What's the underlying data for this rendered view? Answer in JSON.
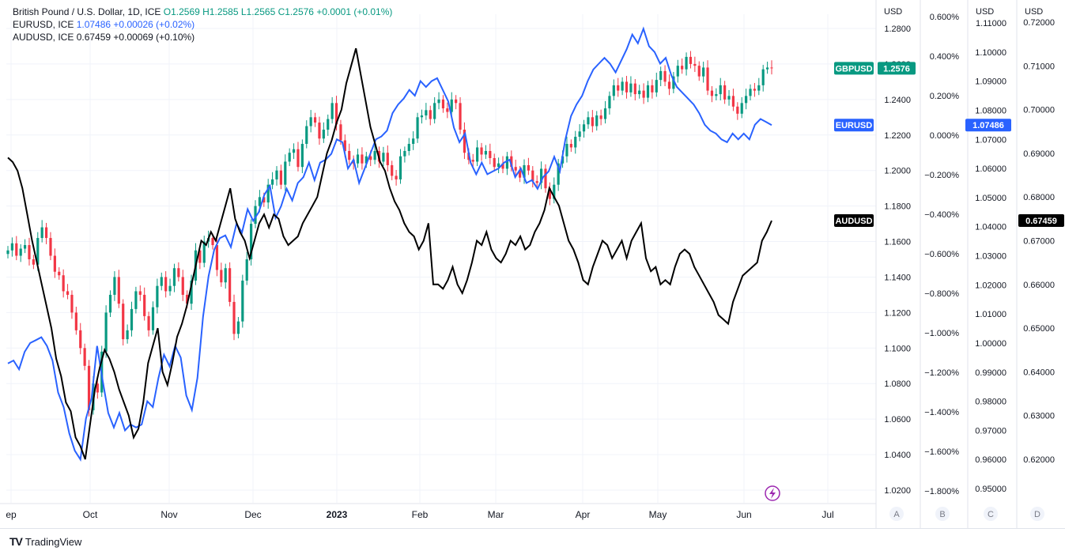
{
  "legend": {
    "main": {
      "name": "British Pound / U.S. Dollar, 1D, ICE",
      "O": "O1.2569",
      "H": "H1.2585",
      "L": "L1.2565",
      "C": "C1.2576",
      "chg": "+0.0001 (+0.01%)"
    },
    "eur": {
      "name": "EURUSD, ICE",
      "value": "1.07486",
      "chg": "+0.00026 (+0.02%)"
    },
    "aud": {
      "name": "AUDUSD, ICE",
      "value": "0.67459",
      "chg": "+0.00069 (+0.10%)"
    }
  },
  "colors": {
    "up": "#089981",
    "down": "#f23645",
    "eur": "#2962ff",
    "aud": "#000000",
    "grid": "#f0f3fa",
    "border": "#e0e3eb"
  },
  "footer": {
    "brand": "TradingView",
    "brand_icon": "tradingview-logo-icon"
  },
  "chart_data": {
    "type": "line",
    "x_labels": [
      "ep",
      "Oct",
      "Nov",
      "Dec",
      "2023",
      "Feb",
      "Mar",
      "Apr",
      "May",
      "Jun",
      "Jul"
    ],
    "scales": [
      {
        "id": "A",
        "unit": "USD",
        "series": "GBPUSD",
        "min": 1.02,
        "max": 1.28,
        "ticks": [
          "1.2800",
          "1.2600",
          "1.2400",
          "1.2200",
          "1.2000",
          "1.1800",
          "1.1600",
          "1.1400",
          "1.1200",
          "1.1000",
          "1.0800",
          "1.0600",
          "1.0400",
          "1.0200"
        ]
      },
      {
        "id": "B",
        "unit": "",
        "series": "percent",
        "min": -1.8,
        "max": 0.6,
        "ticks": [
          "0.600%",
          "0.400%",
          "0.200%",
          "0.000%",
          "−0.200%",
          "−0.400%",
          "−0.600%",
          "−0.800%",
          "−1.000%",
          "−1.200%",
          "−1.400%",
          "−1.600%",
          "−1.800%"
        ]
      },
      {
        "id": "C",
        "unit": "USD",
        "series": "EURUSD",
        "min": 0.95,
        "max": 1.11,
        "ticks": [
          "1.11000",
          "1.10000",
          "1.09000",
          "1.08000",
          "1.07000",
          "1.06000",
          "1.05000",
          "1.04000",
          "1.03000",
          "1.02000",
          "1.01000",
          "1.00000",
          "0.99000",
          "0.98000",
          "0.97000",
          "0.96000",
          "0.95000"
        ]
      },
      {
        "id": "D",
        "unit": "USD",
        "series": "AUDUSD",
        "min": 0.62,
        "max": 0.72,
        "ticks": [
          "0.72000",
          "0.71000",
          "0.70000",
          "0.69000",
          "0.68000",
          "0.67000",
          "0.66000",
          "0.65000",
          "0.64000",
          "0.63000",
          "0.62000"
        ]
      }
    ],
    "last_labels": [
      {
        "name": "GBPUSD",
        "value": "1.2576"
      },
      {
        "name": "EURUSD",
        "value": "1.07486"
      },
      {
        "name": "AUDUSD",
        "value": "0.67459"
      }
    ],
    "scale_buttons": [
      "A",
      "B",
      "C",
      "D"
    ],
    "gbpusd_close": [
      1.155,
      1.159,
      1.152,
      1.156,
      1.158,
      1.15,
      1.147,
      1.162,
      1.168,
      1.162,
      1.152,
      1.143,
      1.141,
      1.132,
      1.13,
      1.12,
      1.11,
      1.1,
      1.09,
      1.065,
      1.08,
      1.075,
      1.098,
      1.12,
      1.13,
      1.14,
      1.125,
      1.105,
      1.11,
      1.122,
      1.132,
      1.13,
      1.118,
      1.11,
      1.123,
      1.135,
      1.14,
      1.132,
      1.135,
      1.145,
      1.14,
      1.13,
      1.125,
      1.138,
      1.155,
      1.148,
      1.16,
      1.162,
      1.158,
      1.144,
      1.137,
      1.145,
      1.126,
      1.108,
      1.115,
      1.138,
      1.15,
      1.17,
      1.18,
      1.185,
      1.182,
      1.192,
      1.195,
      1.2,
      1.192,
      1.205,
      1.21,
      1.212,
      1.202,
      1.215,
      1.225,
      1.23,
      1.227,
      1.218,
      1.223,
      1.229,
      1.238,
      1.226,
      1.217,
      1.211,
      1.206,
      1.204,
      1.209,
      1.204,
      1.208,
      1.206,
      1.211,
      1.205,
      1.21,
      1.203,
      1.197,
      1.195,
      1.208,
      1.211,
      1.215,
      1.218,
      1.23,
      1.231,
      1.234,
      1.229,
      1.238,
      1.24,
      1.235,
      1.233,
      1.24,
      1.238,
      1.223,
      1.21,
      1.206,
      1.205,
      1.213,
      1.209,
      1.211,
      1.207,
      1.202,
      1.204,
      1.201,
      1.208,
      1.202,
      1.2,
      1.196,
      1.203,
      1.2,
      1.194,
      1.193,
      1.201,
      1.19,
      1.184,
      1.192,
      1.204,
      1.208,
      1.215,
      1.213,
      1.219,
      1.222,
      1.226,
      1.23,
      1.225,
      1.231,
      1.229,
      1.235,
      1.242,
      1.248,
      1.245,
      1.25,
      1.244,
      1.249,
      1.243,
      1.245,
      1.241,
      1.248,
      1.244,
      1.251,
      1.256,
      1.25,
      1.246,
      1.253,
      1.259,
      1.257,
      1.264,
      1.26,
      1.259,
      1.253,
      1.258,
      1.245,
      1.242,
      1.243,
      1.248,
      1.24,
      1.242,
      1.236,
      1.232,
      1.238,
      1.242,
      1.246,
      1.245,
      1.248,
      1.257,
      1.258,
      1.2576
    ],
    "eurusd_close": [
      0.993,
      0.994,
      0.991,
      0.997,
      1.0,
      1.001,
      1.002,
      0.999,
      0.994,
      0.983,
      0.978,
      0.969,
      0.963,
      0.96,
      0.974,
      0.981,
      0.999,
      0.987,
      0.976,
      0.971,
      0.976,
      0.97,
      0.972,
      0.971,
      0.972,
      0.98,
      0.978,
      0.988,
      0.996,
      0.992,
      0.999,
      0.995,
      0.982,
      0.977,
      0.988,
      1.009,
      1.023,
      1.032,
      1.036,
      1.037,
      1.033,
      1.041,
      1.038,
      1.046,
      1.042,
      1.045,
      1.051,
      1.054,
      1.043,
      1.047,
      1.053,
      1.049,
      1.055,
      1.057,
      1.062,
      1.056,
      1.062,
      1.063,
      1.065,
      1.07,
      1.069,
      1.06,
      1.063,
      1.055,
      1.06,
      1.065,
      1.07,
      1.071,
      1.073,
      1.079,
      1.082,
      1.084,
      1.087,
      1.085,
      1.09,
      1.088,
      1.09,
      1.091,
      1.087,
      1.083,
      1.074,
      1.069,
      1.072,
      1.062,
      1.058,
      1.062,
      1.058,
      1.059,
      1.06,
      1.062,
      1.063,
      1.057,
      1.06,
      1.055,
      1.056,
      1.053,
      1.057,
      1.059,
      1.064,
      1.059,
      1.07,
      1.078,
      1.082,
      1.085,
      1.09,
      1.094,
      1.096,
      1.098,
      1.096,
      1.093,
      1.097,
      1.101,
      1.106,
      1.103,
      1.108,
      1.102,
      1.1,
      1.096,
      1.098,
      1.092,
      1.088,
      1.086,
      1.084,
      1.082,
      1.079,
      1.075,
      1.073,
      1.072,
      1.07,
      1.069,
      1.072,
      1.07,
      1.072,
      1.07,
      1.075,
      1.077,
      1.076,
      1.0749
    ],
    "audusd_close": [
      0.689,
      0.688,
      0.686,
      0.682,
      0.676,
      0.67,
      0.665,
      0.66,
      0.655,
      0.65,
      0.643,
      0.639,
      0.633,
      0.631,
      0.625,
      0.623,
      0.62,
      0.628,
      0.636,
      0.641,
      0.645,
      0.643,
      0.64,
      0.636,
      0.633,
      0.63,
      0.625,
      0.627,
      0.633,
      0.642,
      0.646,
      0.65,
      0.64,
      0.637,
      0.642,
      0.648,
      0.651,
      0.655,
      0.66,
      0.665,
      0.67,
      0.669,
      0.672,
      0.67,
      0.674,
      0.678,
      0.682,
      0.675,
      0.672,
      0.67,
      0.666,
      0.67,
      0.674,
      0.676,
      0.673,
      0.676,
      0.675,
      0.671,
      0.669,
      0.67,
      0.671,
      0.674,
      0.676,
      0.678,
      0.68,
      0.685,
      0.69,
      0.693,
      0.697,
      0.7,
      0.706,
      0.71,
      0.714,
      0.708,
      0.702,
      0.696,
      0.692,
      0.688,
      0.686,
      0.682,
      0.679,
      0.677,
      0.674,
      0.672,
      0.671,
      0.668,
      0.67,
      0.674,
      0.66,
      0.66,
      0.659,
      0.661,
      0.664,
      0.66,
      0.658,
      0.661,
      0.665,
      0.67,
      0.669,
      0.672,
      0.668,
      0.666,
      0.665,
      0.667,
      0.67,
      0.669,
      0.671,
      0.668,
      0.669,
      0.672,
      0.674,
      0.677,
      0.682,
      0.68,
      0.678,
      0.674,
      0.67,
      0.668,
      0.665,
      0.661,
      0.66,
      0.664,
      0.667,
      0.67,
      0.669,
      0.666,
      0.668,
      0.67,
      0.666,
      0.67,
      0.672,
      0.674,
      0.666,
      0.663,
      0.664,
      0.66,
      0.661,
      0.66,
      0.664,
      0.667,
      0.668,
      0.667,
      0.664,
      0.662,
      0.66,
      0.658,
      0.656,
      0.653,
      0.652,
      0.651,
      0.656,
      0.659,
      0.662,
      0.663,
      0.664,
      0.665,
      0.67,
      0.672,
      0.6746
    ]
  }
}
